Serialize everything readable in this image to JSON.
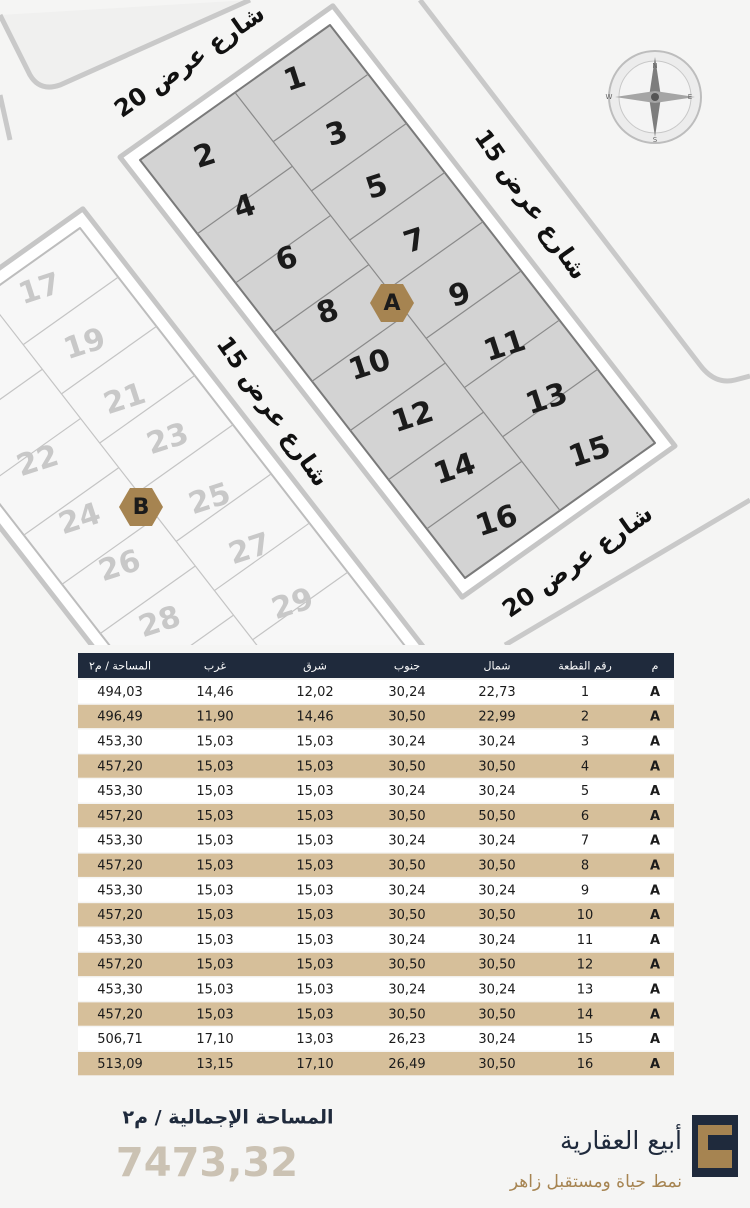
{
  "map": {
    "streets": [
      "شارع عرض 20",
      "شارع عرض 15",
      "شارع عرض 15",
      "شارع عرض 20"
    ],
    "blocks": [
      {
        "label": "A",
        "plots": [
          "1",
          "2",
          "3",
          "4",
          "5",
          "6",
          "7",
          "8",
          "9",
          "10",
          "11",
          "12",
          "13",
          "14",
          "15",
          "16"
        ]
      },
      {
        "label": "B",
        "plots": [
          "17",
          "19",
          "21",
          "22",
          "23",
          "24",
          "25",
          "26",
          "27",
          "28",
          "29"
        ]
      }
    ],
    "compass": [
      "N",
      "E",
      "S",
      "W"
    ]
  },
  "table": {
    "header": [
      "م",
      "رقم القطعة",
      "شمال",
      "جنوب",
      "شرق",
      "غرب",
      "المساحة / م٢"
    ],
    "rows": [
      [
        "A",
        "1",
        "22,73",
        "30,24",
        "12,02",
        "14,46",
        "494,03"
      ],
      [
        "A",
        "2",
        "22,99",
        "30,50",
        "14,46",
        "11,90",
        "496,49"
      ],
      [
        "A",
        "3",
        "30,24",
        "30,24",
        "15,03",
        "15,03",
        "453,30"
      ],
      [
        "A",
        "4",
        "30,50",
        "30,50",
        "15,03",
        "15,03",
        "457,20"
      ],
      [
        "A",
        "5",
        "30,24",
        "30,24",
        "15,03",
        "15,03",
        "453,30"
      ],
      [
        "A",
        "6",
        "50,50",
        "30,50",
        "15,03",
        "15,03",
        "457,20"
      ],
      [
        "A",
        "7",
        "30,24",
        "30,24",
        "15,03",
        "15,03",
        "453,30"
      ],
      [
        "A",
        "8",
        "30,50",
        "30,50",
        "15,03",
        "15,03",
        "457,20"
      ],
      [
        "A",
        "9",
        "30,24",
        "30,24",
        "15,03",
        "15,03",
        "453,30"
      ],
      [
        "A",
        "10",
        "30,50",
        "30,50",
        "15,03",
        "15,03",
        "457,20"
      ],
      [
        "A",
        "11",
        "30,24",
        "30,24",
        "15,03",
        "15,03",
        "453,30"
      ],
      [
        "A",
        "12",
        "30,50",
        "30,50",
        "15,03",
        "15,03",
        "457,20"
      ],
      [
        "A",
        "13",
        "30,24",
        "30,24",
        "15,03",
        "15,03",
        "453,30"
      ],
      [
        "A",
        "14",
        "30,50",
        "30,50",
        "15,03",
        "15,03",
        "457,20"
      ],
      [
        "A",
        "15",
        "30,24",
        "26,23",
        "13,03",
        "17,10",
        "506,71"
      ],
      [
        "A",
        "16",
        "30,50",
        "26,49",
        "17,10",
        "13,15",
        "513,09"
      ]
    ]
  },
  "total": {
    "label": "المساحة الإجمالية / م٢",
    "value": "7473,32"
  },
  "brand": {
    "name": "أبيع العقارية",
    "tagline": "نمط حياة ومستقبل زاهر"
  }
}
